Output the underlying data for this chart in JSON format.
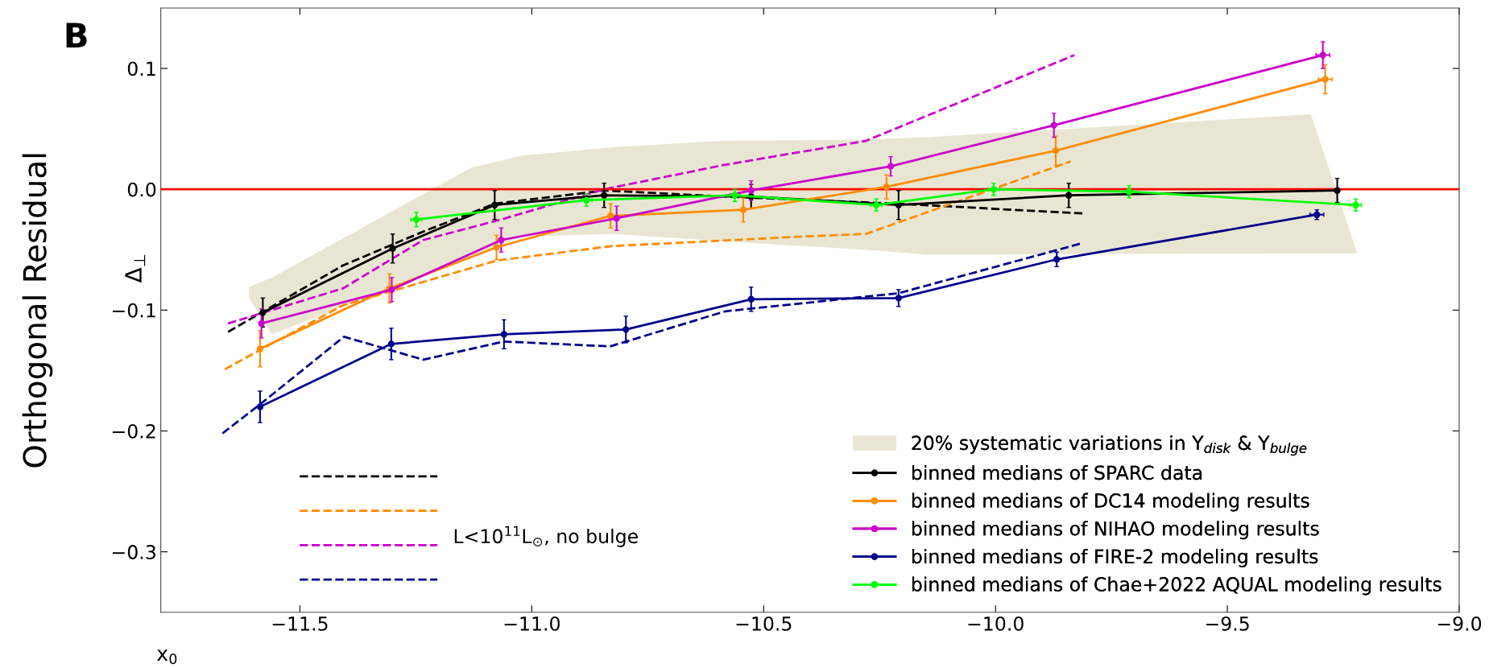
{
  "chart_data": {
    "type": "line",
    "xlabel": "x$_{0}$",
    "ylabel": "Orthogonal Residual",
    "annotations": [
      "B",
      "Δ$_{⊥}$",
      "L<10$^{11}$L$_{⊙}$, no bulge"
    ],
    "xlim": [
      -11.8,
      -9.0
    ],
    "xticks": [
      -11.5,
      {
        "value": -11,
        "label": "−11.0"
      },
      -10.5,
      {
        "value": -10,
        "label": "−10.0"
      },
      -9.5,
      {
        "value": -9,
        "label": "−9.0"
      }
    ],
    "ylim": [
      -0.35,
      0.15
    ],
    "yticks": [
      -0.3,
      -0.2,
      -0.1,
      {
        "value": 0,
        "label": "0.0"
      },
      0.1
    ],
    "grid": false,
    "legend": "bottom right",
    "marker": "circle",
    "ref_lines": [
      {
        "axis": "y",
        "value": 0,
        "color": "#ff0000"
      }
    ],
    "series": [
      {
        "type": "area",
        "marker": "none",
        "name": "20% systematic variations in Υ$_{disk}$ & Υ$_{bulge}$",
        "color": "#e8e6d2",
        "x": [
          -11.61,
          -11.56,
          -11.13,
          -11.02,
          -10.82,
          -10.59,
          -10.28,
          -10.15,
          -9.32,
          -9.22
        ],
        "values": [
          null,
          null,
          null,
          null,
          null,
          null,
          null,
          null,
          null,
          null
        ],
        "upper": [
          -0.081,
          -0.073,
          0.018,
          0.028,
          0.035,
          0.04,
          0.041,
          0.043,
          0.062,
          -0.053
        ],
        "lower": [
          -0.09,
          -0.12,
          -0.056,
          -0.039,
          -0.037,
          -0.043,
          -0.05,
          -0.054,
          -0.053,
          -0.053
        ]
      },
      {
        "name": "binned medians of SPARC data",
        "color": "#000000",
        "x": [
          -11.58,
          -11.3,
          -11.08,
          -10.844,
          -10.527,
          -10.209,
          -9.842,
          -9.263
        ],
        "values": [
          -0.102,
          -0.049,
          -0.013,
          -0.005,
          -0.006,
          -0.013,
          -0.005,
          -0.001
        ],
        "errors": [
          0.012,
          0.012,
          0.012,
          0.01,
          0.01,
          0.012,
          0.01,
          0.01
        ]
      },
      {
        "name": "binned medians of DC14 modeling results",
        "color": "#ff8c00",
        "x": [
          -11.586,
          -11.307,
          -11.076,
          -10.83,
          -10.544,
          -10.235,
          -9.87,
          -9.289
        ],
        "values": [
          -0.132,
          -0.082,
          -0.048,
          -0.022,
          -0.017,
          0.002,
          0.032,
          0.091
        ],
        "errors": [
          0.015,
          0.012,
          0.01,
          0.01,
          0.01,
          0.01,
          0.012,
          0.012
        ],
        "xerrors": [
          null,
          null,
          null,
          null,
          null,
          null,
          null,
          0.015
        ]
      },
      {
        "name": "binned medians of NIHAO modeling results",
        "color": "#cc00cc",
        "x": [
          -11.583,
          -11.302,
          -11.066,
          -10.817,
          -10.527,
          -10.226,
          -9.874,
          -9.294
        ],
        "values": [
          -0.111,
          -0.083,
          -0.042,
          -0.024,
          -0.001,
          0.019,
          0.053,
          0.111
        ],
        "errors": [
          0.012,
          0.01,
          0.01,
          0.01,
          0.008,
          0.008,
          0.01,
          0.011
        ],
        "xerrors": [
          null,
          null,
          null,
          null,
          null,
          null,
          null,
          0.015
        ]
      },
      {
        "name": "binned medians of FIRE-2 modeling results",
        "color": "#00008b",
        "x": [
          -11.586,
          -11.303,
          -11.06,
          -10.797,
          -10.527,
          -10.209,
          -9.868,
          -9.307
        ],
        "values": [
          -0.18,
          -0.128,
          -0.12,
          -0.116,
          -0.091,
          -0.09,
          -0.058,
          -0.021
        ],
        "errors": [
          0.013,
          0.013,
          0.012,
          0.011,
          0.01,
          0.007,
          0.006,
          0.004
        ],
        "xerrors": [
          null,
          null,
          null,
          null,
          null,
          null,
          null,
          0.015
        ]
      },
      {
        "name": "binned medians of Chae+2022 AQUAL modeling results",
        "color": "#00ff00",
        "x": [
          -11.249,
          -10.882,
          -10.562,
          -10.257,
          -10.004,
          -9.712,
          -9.223
        ],
        "values": [
          -0.025,
          -0.009,
          -0.005,
          -0.013,
          0.0,
          -0.002,
          -0.013
        ],
        "errors": [
          0.006,
          0.005,
          0.005,
          0.005,
          0.005,
          0.005,
          0.005
        ],
        "xerrors": [
          0.012,
          0.012,
          0.012,
          0.012,
          0.012,
          0.012,
          0.012
        ]
      },
      {
        "color": "#000000",
        "line_style": "dashed",
        "marker": "none",
        "x": [
          -11.655,
          -11.407,
          -11.234,
          -11.08,
          -10.844,
          -10.585,
          -10.209,
          -9.812
        ],
        "values": [
          -0.118,
          -0.063,
          -0.035,
          -0.012,
          -0.001,
          -0.006,
          -0.012,
          -0.02
        ]
      },
      {
        "color": "#ff8c00",
        "line_style": "dashed",
        "marker": "none",
        "x": [
          -11.662,
          -11.586,
          -11.407,
          -11.076,
          -10.827,
          -10.411,
          -10.28,
          -9.838
        ],
        "values": [
          -0.149,
          -0.133,
          -0.096,
          -0.059,
          -0.047,
          -0.039,
          -0.037,
          0.023
        ]
      },
      {
        "color": "#cc00cc",
        "line_style": "dashed",
        "marker": "none",
        "x": [
          -11.655,
          -11.407,
          -11.234,
          -11.066,
          -10.844,
          -10.587,
          -10.28,
          -9.83
        ],
        "values": [
          -0.111,
          -0.082,
          -0.042,
          -0.025,
          0.0,
          0.02,
          0.04,
          0.111
        ]
      },
      {
        "color": "#00008b",
        "line_style": "dashed",
        "marker": "none",
        "x": [
          -11.667,
          -11.586,
          -11.405,
          -11.234,
          -11.06,
          -10.831,
          -10.583,
          -10.209,
          -9.817
        ],
        "values": [
          -0.202,
          -0.178,
          -0.122,
          -0.141,
          -0.126,
          -0.13,
          -0.101,
          -0.086,
          -0.045
        ]
      }
    ]
  }
}
